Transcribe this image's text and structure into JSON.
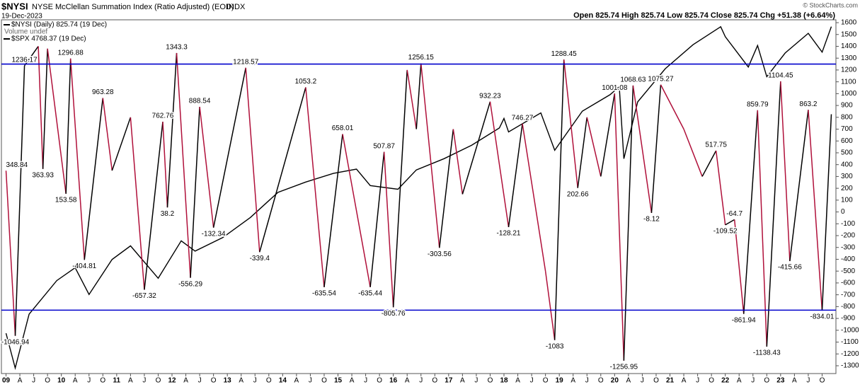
{
  "chart_data": {
    "type": "line",
    "symbol": "$NYSI",
    "title": "NYSE McClellan Summation Index (Ratio Adjusted) (EOD)",
    "exchange": "INDX",
    "date": "19-Dec-2023",
    "quote": "Open 825.74 High 825.74 Low 825.74 Close 825.74 Chg +51.38 (+6.64%)",
    "credit": "© StockCharts.com",
    "legend_notes": [
      "Volume undef"
    ],
    "grid": false,
    "xlim": [
      "2008-12",
      "2024-01"
    ],
    "xticks": [
      {
        "value": "2009-01",
        "label": "09"
      },
      {
        "value": "2009-04",
        "label": "A"
      },
      {
        "value": "2009-07",
        "label": "J"
      },
      {
        "value": "2009-10",
        "label": "O"
      },
      {
        "value": "2010-01",
        "label": "10"
      },
      {
        "value": "2010-04",
        "label": "A"
      },
      {
        "value": "2010-07",
        "label": "J"
      },
      {
        "value": "2010-10",
        "label": "O"
      },
      {
        "value": "2011-01",
        "label": "11"
      },
      {
        "value": "2011-04",
        "label": "A"
      },
      {
        "value": "2011-07",
        "label": "J"
      },
      {
        "value": "2011-10",
        "label": "O"
      },
      {
        "value": "2012-01",
        "label": "12"
      },
      {
        "value": "2012-04",
        "label": "A"
      },
      {
        "value": "2012-07",
        "label": "J"
      },
      {
        "value": "2012-10",
        "label": "O"
      },
      {
        "value": "2013-01",
        "label": "13"
      },
      {
        "value": "2013-04",
        "label": "A"
      },
      {
        "value": "2013-07",
        "label": "J"
      },
      {
        "value": "2013-10",
        "label": "O"
      },
      {
        "value": "2014-01",
        "label": "14"
      },
      {
        "value": "2014-04",
        "label": "A"
      },
      {
        "value": "2014-07",
        "label": "J"
      },
      {
        "value": "2014-10",
        "label": "O"
      },
      {
        "value": "2015-01",
        "label": "15"
      },
      {
        "value": "2015-04",
        "label": "A"
      },
      {
        "value": "2015-07",
        "label": "J"
      },
      {
        "value": "2015-10",
        "label": "O"
      },
      {
        "value": "2016-01",
        "label": "16"
      },
      {
        "value": "2016-04",
        "label": "A"
      },
      {
        "value": "2016-07",
        "label": "J"
      },
      {
        "value": "2016-10",
        "label": "O"
      },
      {
        "value": "2017-01",
        "label": "17"
      },
      {
        "value": "2017-04",
        "label": "A"
      },
      {
        "value": "2017-07",
        "label": "J"
      },
      {
        "value": "2017-10",
        "label": "O"
      },
      {
        "value": "2018-01",
        "label": "18"
      },
      {
        "value": "2018-04",
        "label": "A"
      },
      {
        "value": "2018-07",
        "label": "J"
      },
      {
        "value": "2018-10",
        "label": "O"
      },
      {
        "value": "2019-01",
        "label": "19"
      },
      {
        "value": "2019-04",
        "label": "A"
      },
      {
        "value": "2019-07",
        "label": "J"
      },
      {
        "value": "2019-10",
        "label": "O"
      },
      {
        "value": "2020-01",
        "label": "20"
      },
      {
        "value": "2020-04",
        "label": "A"
      },
      {
        "value": "2020-07",
        "label": "J"
      },
      {
        "value": "2020-10",
        "label": "O"
      },
      {
        "value": "2021-01",
        "label": "21"
      },
      {
        "value": "2021-04",
        "label": "A"
      },
      {
        "value": "2021-07",
        "label": "J"
      },
      {
        "value": "2021-10",
        "label": "O"
      },
      {
        "value": "2022-01",
        "label": "22"
      },
      {
        "value": "2022-04",
        "label": "A"
      },
      {
        "value": "2022-07",
        "label": "J"
      },
      {
        "value": "2022-10",
        "label": "O"
      },
      {
        "value": "2023-01",
        "label": "23"
      },
      {
        "value": "2023-04",
        "label": "A"
      },
      {
        "value": "2023-07",
        "label": "J"
      },
      {
        "value": "2023-10",
        "label": "O"
      }
    ],
    "ylim": [
      -1348,
      1660
    ],
    "yticks": [
      -1300,
      -1200,
      -1100,
      -1000,
      -900,
      -800,
      -700,
      -600,
      -500,
      -400,
      -300,
      -200,
      -100,
      0,
      100,
      200,
      300,
      400,
      500,
      600,
      700,
      800,
      900,
      1000,
      1100,
      1200,
      1300,
      1400,
      1500,
      1600
    ],
    "y2lim": [
      663,
      5080
    ],
    "y2_log": true,
    "hlines": [
      {
        "value": 1250,
        "color": "#0000cc"
      },
      {
        "value": -830,
        "color": "#0000cc"
      }
    ],
    "series": [
      {
        "name": "$SPX 4768.37 (19 Dec)",
        "color": "#000000",
        "axis": "y2",
        "x": [
          "2009-01",
          "2009-03",
          "2009-06",
          "2009-12",
          "2010-04",
          "2010-07",
          "2010-12",
          "2011-04",
          "2011-10",
          "2012-03",
          "2012-06",
          "2012-12",
          "2013-06",
          "2013-12",
          "2014-06",
          "2014-12",
          "2015-05",
          "2015-08",
          "2016-02",
          "2016-06",
          "2016-12",
          "2017-06",
          "2017-12",
          "2018-01",
          "2018-02",
          "2018-09",
          "2018-12",
          "2019-06",
          "2019-12",
          "2020-02",
          "2020-03",
          "2020-06",
          "2020-12",
          "2021-06",
          "2021-12",
          "2022-01",
          "2022-06",
          "2022-08",
          "2022-10",
          "2023-02",
          "2023-07",
          "2023-10",
          "2023-12"
        ],
        "values": [
          825,
          676,
          920,
          1115,
          1200,
          1030,
          1258,
          1360,
          1130,
          1400,
          1320,
          1426,
          1600,
          1848,
          1960,
          2059,
          2110,
          1920,
          1880,
          2100,
          2240,
          2420,
          2670,
          2820,
          2610,
          2910,
          2350,
          2940,
          3230,
          3380,
          2240,
          3100,
          3750,
          4300,
          4766,
          4500,
          3785,
          4280,
          3580,
          4100,
          4590,
          4120,
          4768.37
        ]
      },
      {
        "name": "$NYSI (Daily) 825.74 (19 Dec)",
        "color": "#000000",
        "down_color": "#b0103a",
        "x": [
          "2009-01",
          "2009-03",
          "2009-05",
          "2009-08",
          "2009-09",
          "2009-10",
          "2010-02",
          "2010-03",
          "2010-06",
          "2010-10",
          "2010-12",
          "2011-04",
          "2011-07",
          "2011-11",
          "2011-12",
          "2012-02",
          "2012-05",
          "2012-07",
          "2012-10",
          "2013-05",
          "2013-08",
          "2014-06",
          "2014-10",
          "2015-02",
          "2015-08",
          "2015-11",
          "2016-01",
          "2016-04",
          "2016-06",
          "2016-07",
          "2016-11",
          "2017-02",
          "2017-04",
          "2017-10",
          "2018-02",
          "2018-05",
          "2018-10",
          "2018-12",
          "2019-02",
          "2019-05",
          "2019-07",
          "2019-10",
          "2020-01",
          "2020-03",
          "2020-05",
          "2020-09",
          "2020-11",
          "2021-04",
          "2021-08",
          "2021-11",
          "2022-01",
          "2022-03",
          "2022-05",
          "2022-08",
          "2022-10",
          "2023-01",
          "2023-03",
          "2023-07",
          "2023-10",
          "2023-12"
        ],
        "values": [
          348.84,
          -1046.94,
          1236.17,
          1400,
          363.93,
          1380,
          153.58,
          1296.88,
          -404.81,
          963.28,
          350,
          800,
          -657.32,
          762.76,
          38.2,
          1343.3,
          -556.29,
          888.54,
          -132.34,
          1218.57,
          -339.4,
          1053.2,
          -635.54,
          658.01,
          -635.44,
          507.87,
          -805.76,
          1200,
          700,
          1256.15,
          -303.56,
          700,
          150,
          932.23,
          -128.21,
          746.27,
          -500,
          -1083.0,
          1288.45,
          202.66,
          800,
          300,
          1001.08,
          -1256.95,
          1068.63,
          -8.12,
          1075.27,
          700,
          300,
          517.75,
          -109.52,
          -64.7,
          -861.94,
          859.79,
          -1138.43,
          1104.45,
          -415.66,
          863.2,
          -834.01,
          825.74
        ]
      }
    ],
    "annotations": [
      {
        "x": "2009-01",
        "value": 348.84
      },
      {
        "x": "2009-03",
        "value": -1046.94
      },
      {
        "x": "2009-05",
        "value": 1236.17
      },
      {
        "x": "2009-09",
        "value": 363.93
      },
      {
        "x": "2010-02",
        "value": 153.58
      },
      {
        "x": "2010-03",
        "value": 1296.88
      },
      {
        "x": "2010-06",
        "value": -404.81
      },
      {
        "x": "2010-10",
        "value": 963.28
      },
      {
        "x": "2011-07",
        "value": -657.32
      },
      {
        "x": "2011-11",
        "value": 762.76
      },
      {
        "x": "2011-12",
        "value": 38.2
      },
      {
        "x": "2012-02",
        "value": 1343.3
      },
      {
        "x": "2012-05",
        "value": -556.29
      },
      {
        "x": "2012-07",
        "value": 888.54
      },
      {
        "x": "2012-10",
        "value": -132.34
      },
      {
        "x": "2013-05",
        "value": 1218.57
      },
      {
        "x": "2013-08",
        "value": -339.4
      },
      {
        "x": "2014-06",
        "value": 1053.2
      },
      {
        "x": "2014-10",
        "value": -635.54
      },
      {
        "x": "2015-02",
        "value": 658.01
      },
      {
        "x": "2015-08",
        "value": -635.44
      },
      {
        "x": "2015-11",
        "value": 507.87
      },
      {
        "x": "2016-01",
        "value": -805.76
      },
      {
        "x": "2016-07",
        "value": 1256.15
      },
      {
        "x": "2016-11",
        "value": -303.56
      },
      {
        "x": "2017-10",
        "value": 932.23
      },
      {
        "x": "2018-02",
        "value": -128.21
      },
      {
        "x": "2018-05",
        "value": 746.27
      },
      {
        "x": "2018-12",
        "value": -1083.0
      },
      {
        "x": "2019-02",
        "value": 1288.45
      },
      {
        "x": "2019-05",
        "value": 202.66
      },
      {
        "x": "2020-01",
        "value": 1001.08
      },
      {
        "x": "2020-03",
        "value": -1256.95
      },
      {
        "x": "2020-05",
        "value": 1068.63
      },
      {
        "x": "2020-09",
        "value": -8.12
      },
      {
        "x": "2020-11",
        "value": 1075.27
      },
      {
        "x": "2021-11",
        "value": 517.75
      },
      {
        "x": "2022-01",
        "value": -109.52
      },
      {
        "x": "2022-03",
        "value": -64.7
      },
      {
        "x": "2022-05",
        "value": -861.94
      },
      {
        "x": "2022-08",
        "value": 859.79
      },
      {
        "x": "2022-10",
        "value": -1138.43
      },
      {
        "x": "2023-01",
        "value": 1104.45
      },
      {
        "x": "2023-03",
        "value": -415.66
      },
      {
        "x": "2023-07",
        "value": 863.2
      },
      {
        "x": "2023-10",
        "value": -834.01
      }
    ]
  }
}
